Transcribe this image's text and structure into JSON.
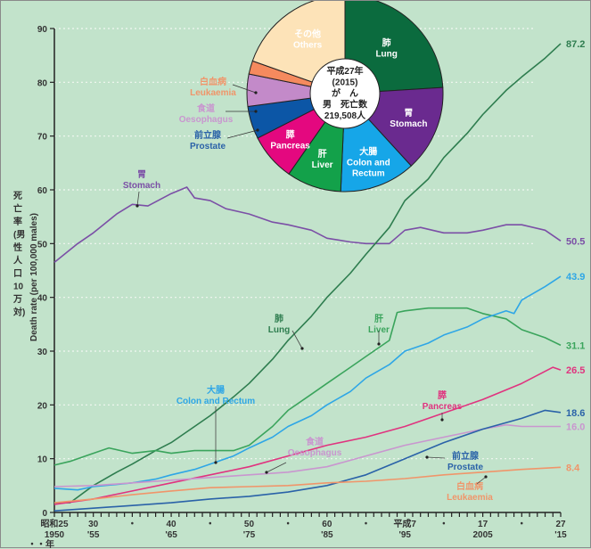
{
  "chart_data": {
    "type": "line",
    "title": "",
    "ylabel_jp": [
      "死",
      "亡",
      "率",
      "(男",
      "性",
      "人",
      "口",
      "10",
      "万",
      "対)"
    ],
    "ylabel": "Death rate (per 100,000 males)",
    "ylim": [
      0,
      90
    ],
    "yticks": [
      0,
      10,
      20,
      30,
      40,
      50,
      60,
      70,
      80,
      90
    ],
    "xlim": [
      1950,
      2015
    ],
    "grid": true,
    "xtick_labels": [
      {
        "year": 1950,
        "line1": "昭和25",
        "line2": "1950"
      },
      {
        "year": 1955,
        "line1": "30",
        "line2": "'55"
      },
      {
        "year": 1960,
        "line1": "・",
        "line2": ""
      },
      {
        "year": 1965,
        "line1": "40",
        "line2": "'65"
      },
      {
        "year": 1970,
        "line1": "・",
        "line2": ""
      },
      {
        "year": 1975,
        "line1": "50",
        "line2": "'75"
      },
      {
        "year": 1980,
        "line1": "・",
        "line2": ""
      },
      {
        "year": 1985,
        "line1": "60",
        "line2": "'85"
      },
      {
        "year": 1990,
        "line1": "・",
        "line2": ""
      },
      {
        "year": 1995,
        "line1": "平成7",
        "line2": "'95"
      },
      {
        "year": 2000,
        "line1": "・",
        "line2": ""
      },
      {
        "year": 2005,
        "line1": "17",
        "line2": "2005"
      },
      {
        "year": 2010,
        "line1": "・",
        "line2": ""
      },
      {
        "year": 2015,
        "line1": "27",
        "line2": "'15"
      }
    ],
    "x_unit_label": "・・年",
    "series": [
      {
        "key": "stomach",
        "name": "Stomach",
        "name_jp": "胃",
        "color": "#7b4fa6",
        "end_value": "50.5",
        "x": [
          1950,
          1953,
          1955,
          1958,
          1960,
          1962,
          1965,
          1967,
          1968,
          1970,
          1972,
          1975,
          1978,
          1980,
          1983,
          1985,
          1988,
          1990,
          1993,
          1995,
          1997,
          2000,
          2003,
          2005,
          2008,
          2010,
          2013,
          2015
        ],
        "values": [
          46.5,
          50,
          52,
          55.5,
          57.3,
          57,
          59.3,
          60.5,
          58.5,
          58,
          56.5,
          55.5,
          54,
          53.5,
          52.5,
          51,
          50.3,
          50,
          50,
          52.5,
          53,
          52,
          52,
          52.5,
          53.5,
          53.5,
          52.5,
          50.5
        ]
      },
      {
        "key": "lung",
        "name": "Lung",
        "name_jp": "肺",
        "color": "#2e7d4f",
        "end_value": "87.2",
        "x": [
          1950,
          1952,
          1955,
          1958,
          1960,
          1963,
          1965,
          1968,
          1970,
          1973,
          1975,
          1978,
          1980,
          1983,
          1985,
          1988,
          1990,
          1993,
          1995,
          1998,
          2000,
          2003,
          2005,
          2008,
          2010,
          2013,
          2015
        ],
        "values": [
          1.8,
          1.8,
          5,
          7.5,
          9,
          11.5,
          13,
          16,
          18,
          21.5,
          24,
          28.5,
          32,
          36.5,
          40,
          44.5,
          48,
          53,
          58,
          62,
          66,
          70.5,
          74,
          78.5,
          81,
          84.5,
          87.2
        ]
      },
      {
        "key": "liver",
        "name": "Liver",
        "name_jp": "肝",
        "color": "#3aa45c",
        "end_value": "31.1",
        "x": [
          1950,
          1952,
          1955,
          1957,
          1960,
          1963,
          1965,
          1968,
          1970,
          1973,
          1975,
          1978,
          1980,
          1983,
          1985,
          1988,
          1990,
          1993,
          1994,
          1995,
          1998,
          2000,
          2003,
          2005,
          2008,
          2010,
          2013,
          2015
        ],
        "values": [
          8.8,
          9.5,
          11,
          12,
          11,
          11.5,
          11,
          11.5,
          11.5,
          11.5,
          12.5,
          16,
          19,
          22,
          24,
          27,
          29,
          32,
          37.2,
          37.5,
          38,
          38,
          38,
          37,
          36,
          34,
          32.5,
          31.1
        ]
      },
      {
        "key": "colon",
        "name": "Colon and Rectum",
        "name_jp": "大腸",
        "color": "#2ea6e6",
        "end_value": "43.9",
        "x": [
          1950,
          1953,
          1955,
          1958,
          1960,
          1963,
          1965,
          1968,
          1970,
          1973,
          1975,
          1978,
          1980,
          1983,
          1985,
          1988,
          1990,
          1993,
          1995,
          1998,
          2000,
          2003,
          2005,
          2008,
          2009,
          2010,
          2013,
          2015
        ],
        "values": [
          4.5,
          4.2,
          4.8,
          5.2,
          5.5,
          6.2,
          7,
          8,
          9,
          10.5,
          12,
          14,
          16,
          18,
          20,
          22.5,
          25,
          27.5,
          30,
          31.5,
          33,
          34.5,
          36,
          37.5,
          37,
          39.5,
          42,
          43.9
        ]
      },
      {
        "key": "pancreas",
        "name": "Pancreas",
        "name_jp": "膵",
        "color": "#e0337f",
        "end_value": "26.5",
        "x": [
          1950,
          1955,
          1960,
          1965,
          1970,
          1975,
          1980,
          1985,
          1990,
          1995,
          2000,
          2005,
          2010,
          2014,
          2015
        ],
        "values": [
          1.5,
          2.5,
          4,
          5.5,
          7,
          8.5,
          10.5,
          12.5,
          14,
          16,
          18.5,
          21,
          24,
          27,
          26.5
        ]
      },
      {
        "key": "oesophagus",
        "name": "Oesophagus",
        "name_jp": "食道",
        "color": "#c996cf",
        "end_value": "16.0",
        "x": [
          1950,
          1955,
          1960,
          1965,
          1970,
          1975,
          1980,
          1985,
          1990,
          1995,
          2000,
          2005,
          2008,
          2010,
          2015
        ],
        "values": [
          4.8,
          5,
          5.5,
          6,
          6.5,
          7,
          7.5,
          8.5,
          10.5,
          12.5,
          14,
          15.5,
          16.3,
          16,
          16
        ]
      },
      {
        "key": "prostate",
        "name": "Prostate",
        "name_jp": "前立腺",
        "color": "#2a62a8",
        "end_value": "18.6",
        "x": [
          1950,
          1955,
          1960,
          1965,
          1970,
          1975,
          1980,
          1985,
          1990,
          1995,
          2000,
          2005,
          2010,
          2013,
          2015
        ],
        "values": [
          0.3,
          0.8,
          1.3,
          1.8,
          2.5,
          3,
          3.8,
          5,
          7,
          10,
          13,
          15.5,
          17.5,
          19,
          18.6
        ]
      },
      {
        "key": "leukaemia",
        "name": "Leukaemia",
        "name_jp": "白血病",
        "color": "#f0956a",
        "end_value": "8.4",
        "x": [
          1950,
          1955,
          1960,
          1965,
          1970,
          1975,
          1980,
          1985,
          1990,
          1995,
          2000,
          2005,
          2010,
          2015
        ],
        "values": [
          1.8,
          2.5,
          3.3,
          4,
          4.6,
          4.8,
          5,
          5.5,
          5.8,
          6.3,
          7,
          7.5,
          8,
          8.4
        ]
      }
    ],
    "annotations": [
      {
        "series": "stomach",
        "jp": "胃",
        "en": "Stomach"
      },
      {
        "series": "lung",
        "jp": "肺",
        "en": "Lung"
      },
      {
        "series": "liver",
        "jp": "肝",
        "en": "Liver"
      },
      {
        "series": "colon",
        "jp": "大腸",
        "en": "Colon and Rectum"
      },
      {
        "series": "oesophagus",
        "jp": "食道",
        "en": "Oesophagus"
      },
      {
        "series": "pancreas",
        "jp": "膵",
        "en": "Pancreas"
      },
      {
        "series": "prostate",
        "jp": "前立腺",
        "en": "Prostate"
      },
      {
        "series": "leukaemia",
        "jp": "白血病",
        "en": "Leukaemia"
      }
    ],
    "pie": {
      "type": "pie",
      "center_text": [
        "平成27年",
        "(2015)",
        "が　ん",
        "男　死亡数",
        "219,508人"
      ],
      "slices": [
        {
          "key": "lung",
          "jp": "肺",
          "en": "Lung",
          "share": 24.0,
          "color": "#0b6b3e"
        },
        {
          "key": "stomach",
          "jp": "胃",
          "en": "Stomach",
          "share": 14.2,
          "color": "#6a2a8f"
        },
        {
          "key": "colon",
          "jp": "大腸",
          "en": "Colon and Rectum",
          "share": 12.5,
          "color": "#16a6e8"
        },
        {
          "key": "liver",
          "jp": "肝",
          "en": "Liver",
          "share": 9.0,
          "color": "#13a14a"
        },
        {
          "key": "pancreas",
          "jp": "膵",
          "en": "Pancreas",
          "share": 7.8,
          "color": "#e4087f"
        },
        {
          "key": "prostate",
          "jp": "前立腺",
          "en": "Prostate",
          "share": 5.4,
          "color": "#0c56a6"
        },
        {
          "key": "oesophagus",
          "jp": "食道",
          "en": "Oesophagus",
          "share": 5.3,
          "color": "#c38ac9"
        },
        {
          "key": "leukaemia",
          "jp": "白血病",
          "en": "Leukaemia",
          "share": 2.2,
          "color": "#f58a5e"
        },
        {
          "key": "others",
          "jp": "その他",
          "en": "Others",
          "share": 19.6,
          "color": "#fde3b8"
        }
      ]
    }
  }
}
